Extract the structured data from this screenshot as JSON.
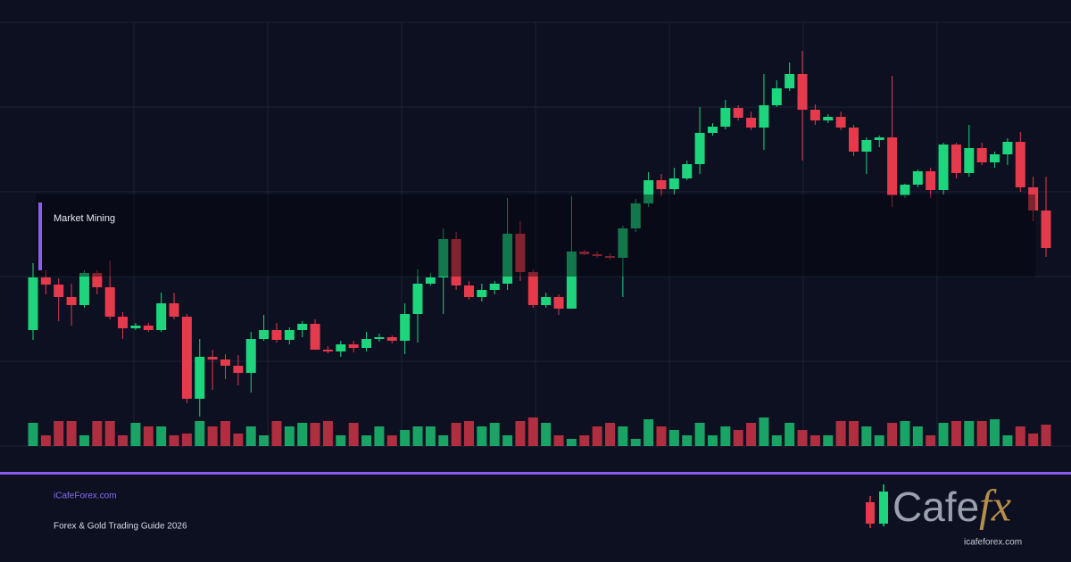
{
  "chart_data": {
    "type": "candlestick",
    "ylim": [
      0,
      600
    ],
    "volume_lim": [
      0,
      100
    ],
    "up_color": "#1ed47c",
    "down_color": "#e53a4b",
    "grid": true,
    "annotation": "Market Mining",
    "open": [
      230,
      289,
      281,
      267,
      258,
      294,
      278,
      245,
      232,
      235,
      230,
      260,
      245,
      153,
      200,
      197,
      190,
      182,
      220,
      230,
      219,
      230,
      237,
      208,
      206,
      214,
      210,
      220,
      222,
      218,
      248,
      282,
      289,
      332,
      280,
      267,
      275,
      282,
      338,
      295,
      258,
      267,
      254,
      318,
      315,
      313,
      311,
      344,
      372,
      398,
      388,
      400,
      416,
      451,
      458,
      479,
      468,
      457,
      482,
      501,
      517,
      477,
      465,
      469,
      457,
      430,
      443,
      446,
      381,
      393,
      408,
      387,
      438,
      406,
      434,
      418,
      427,
      441,
      390,
      364
    ],
    "high": [
      305,
      297,
      288,
      282,
      297,
      297,
      308,
      250,
      238,
      238,
      272,
      272,
      248,
      220,
      208,
      203,
      202,
      228,
      247,
      238,
      233,
      240,
      242,
      212,
      218,
      218,
      228,
      226,
      224,
      260,
      298,
      294,
      344,
      340,
      285,
      282,
      285,
      378,
      352,
      298,
      272,
      270,
      380,
      320,
      318,
      316,
      347,
      377,
      407,
      405,
      412,
      420,
      480,
      462,
      488,
      482,
      475,
      517,
      510,
      530,
      543,
      483,
      472,
      475,
      460,
      446,
      448,
      515,
      394,
      410,
      412,
      440,
      440,
      460,
      440,
      430,
      445,
      452,
      402,
      402
    ],
    "low": [
      219,
      270,
      240,
      235,
      255,
      270,
      242,
      220,
      230,
      228,
      228,
      242,
      148,
      133,
      163,
      175,
      168,
      160,
      218,
      216,
      214,
      222,
      208,
      204,
      200,
      205,
      206,
      217,
      215,
      203,
      216,
      280,
      248,
      275,
      264,
      262,
      270,
      275,
      285,
      255,
      255,
      247,
      254,
      314,
      311,
      309,
      267,
      340,
      368,
      380,
      382,
      398,
      405,
      448,
      455,
      465,
      454,
      432,
      480,
      498,
      420,
      460,
      462,
      454,
      425,
      405,
      435,
      368,
      378,
      390,
      378,
      382,
      400,
      402,
      415,
      412,
      415,
      385,
      352,
      312
    ],
    "close": [
      289,
      281,
      267,
      258,
      294,
      278,
      245,
      232,
      235,
      230,
      260,
      245,
      153,
      200,
      197,
      190,
      182,
      220,
      230,
      219,
      230,
      237,
      208,
      206,
      214,
      210,
      220,
      222,
      218,
      248,
      282,
      289,
      332,
      280,
      267,
      275,
      282,
      338,
      295,
      258,
      267,
      254,
      318,
      315,
      313,
      311,
      344,
      372,
      398,
      388,
      400,
      416,
      451,
      458,
      479,
      468,
      457,
      482,
      501,
      517,
      477,
      465,
      469,
      457,
      430,
      443,
      446,
      381,
      393,
      408,
      387,
      438,
      406,
      434,
      418,
      427,
      441,
      390,
      364,
      322
    ],
    "volume": [
      26,
      12,
      28,
      28,
      12,
      28,
      28,
      12,
      26,
      22,
      22,
      12,
      14,
      28,
      22,
      28,
      14,
      22,
      12,
      28,
      22,
      26,
      26,
      28,
      12,
      26,
      12,
      22,
      12,
      18,
      22,
      22,
      12,
      26,
      28,
      22,
      26,
      12,
      28,
      32,
      26,
      12,
      8,
      12,
      22,
      26,
      22,
      8,
      30,
      22,
      18,
      12,
      26,
      12,
      22,
      18,
      26,
      32,
      12,
      26,
      18,
      12,
      12,
      28,
      28,
      22,
      12,
      26,
      28,
      22,
      12,
      26,
      28,
      28,
      28,
      30,
      12,
      22,
      14,
      24
    ]
  },
  "footer": {
    "site": "iCafeForex.com",
    "subtitle": "Forex & Gold Trading Guide 2026"
  },
  "logo": {
    "text": "Cafe",
    "accent": "fx",
    "url": "icafeforex.com"
  }
}
